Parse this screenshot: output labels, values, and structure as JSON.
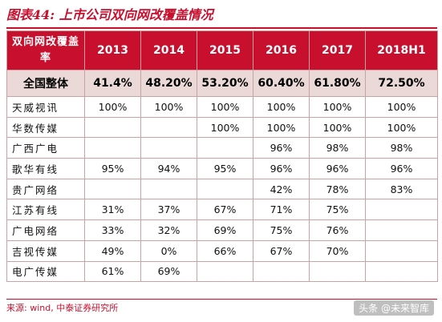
{
  "title": "图表44: 上市公司双向网改覆盖情况",
  "table": {
    "header_label": "双向网改覆盖率",
    "years": [
      "2013",
      "2014",
      "2015",
      "2016",
      "2017",
      "2018H1"
    ],
    "total": {
      "name": "全国整体",
      "values": [
        "41.4%",
        "48.20%",
        "53.20%",
        "60.40%",
        "61.80%",
        "72.50%"
      ]
    },
    "rows": [
      {
        "name": "天威视讯",
        "values": [
          "100%",
          "100%",
          "100%",
          "100%",
          "100%",
          "100%"
        ]
      },
      {
        "name": "华数传媒",
        "values": [
          "",
          "",
          "100%",
          "100%",
          "100%",
          "100%"
        ]
      },
      {
        "name": "广西广电",
        "values": [
          "",
          "",
          "",
          "96%",
          "98%",
          "98%"
        ]
      },
      {
        "name": "歌华有线",
        "values": [
          "95%",
          "94%",
          "95%",
          "96%",
          "96%",
          "96%"
        ]
      },
      {
        "name": "贵广网络",
        "values": [
          "",
          "",
          "",
          "42%",
          "78%",
          "83%"
        ]
      },
      {
        "name": "江苏有线",
        "values": [
          "31%",
          "37%",
          "67%",
          "71%",
          "75%",
          ""
        ]
      },
      {
        "name": "广电网络",
        "values": [
          "33%",
          "32%",
          "69%",
          "75%",
          "76%",
          ""
        ]
      },
      {
        "name": "吉视传媒",
        "values": [
          "49%",
          "0%",
          "66%",
          "67%",
          "70%",
          ""
        ]
      },
      {
        "name": "电广传媒",
        "values": [
          "61%",
          "69%",
          "",
          "",
          "",
          ""
        ]
      }
    ]
  },
  "source": "来源: wind, 中泰证券研究所",
  "watermark": "头条 @未来智库",
  "colors": {
    "accent": "#c8102e",
    "total_row_bg": "#ead9d7"
  }
}
